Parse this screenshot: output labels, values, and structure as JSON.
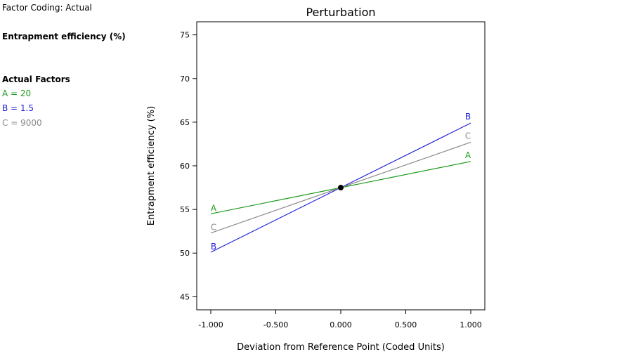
{
  "side_panel": {
    "factor_coding": "Factor Coding: Actual",
    "response": "Entrapment efficiency (%)",
    "actual_factors_title": "Actual Factors",
    "factors": [
      {
        "text": "A = 20",
        "color": "#1a9a1a"
      },
      {
        "text": "B = 1.5",
        "color": "#2020d8"
      },
      {
        "text": "C = 9000",
        "color": "#8a8a8a"
      }
    ]
  },
  "chart_data": {
    "type": "line",
    "title": "Perturbation",
    "xlabel": "Deviation from Reference Point (Coded Units)",
    "ylabel": "Entrapment efficiency (%)",
    "xlim": [
      -1.0,
      1.0
    ],
    "ylim": [
      43.5,
      76.5
    ],
    "xticks": [
      -1.0,
      -0.5,
      0.0,
      0.5,
      1.0
    ],
    "xtick_labels": [
      "-1.000",
      "-0.500",
      "0.000",
      "0.500",
      "1.000"
    ],
    "yticks": [
      45,
      50,
      55,
      60,
      65,
      70,
      75
    ],
    "ytick_labels": [
      "45",
      "50",
      "55",
      "60",
      "65",
      "70",
      "75"
    ],
    "grid": false,
    "reference_point": {
      "x": 0.0,
      "y": 57.5
    },
    "series": [
      {
        "name": "A",
        "color": "#1a9a1a",
        "x": [
          -1.0,
          1.0
        ],
        "y": [
          54.5,
          60.5
        ]
      },
      {
        "name": "B",
        "color": "#2020d8",
        "x": [
          -1.0,
          1.0
        ],
        "y": [
          50.1,
          64.9
        ]
      },
      {
        "name": "C",
        "color": "#8a8a8a",
        "x": [
          -1.0,
          1.0
        ],
        "y": [
          52.3,
          62.7
        ]
      }
    ]
  }
}
